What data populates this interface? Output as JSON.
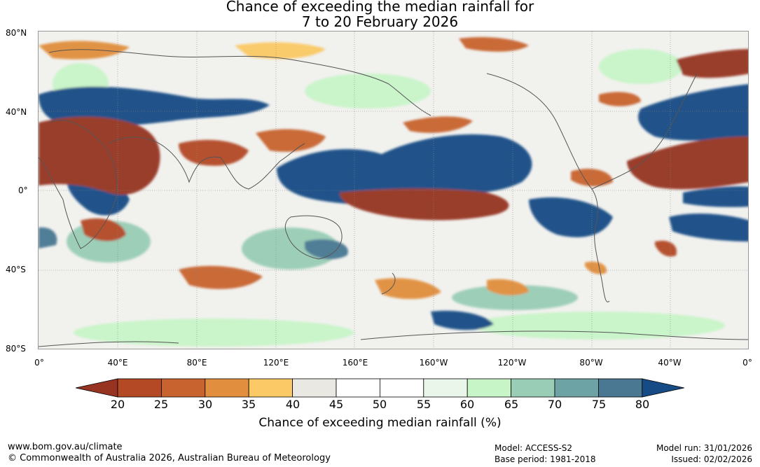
{
  "title_line1": "Chance of exceeding the median rainfall for",
  "title_line2": "7 to 20 February 2026",
  "lat_labels": [
    "80°N",
    "40°N",
    "0°",
    "40°S",
    "80°S"
  ],
  "lon_labels": [
    "0°",
    "40°E",
    "80°E",
    "120°E",
    "160°E",
    "160°W",
    "120°W",
    "80°W",
    "40°W",
    "0°"
  ],
  "colorbar": {
    "ticks": [
      "20",
      "25",
      "30",
      "35",
      "40",
      "45",
      "50",
      "55",
      "60",
      "65",
      "70",
      "75",
      "80"
    ],
    "label": "Chance of exceeding median rainfall (%)",
    "colors": [
      "#963421",
      "#b34a25",
      "#c8632f",
      "#e18f3e",
      "#fbc965",
      "#e9e8e3",
      "#ffffff",
      "#ffffff",
      "#e9f6e9",
      "#c8f5c8",
      "#99cdb5",
      "#6ea3a6",
      "#4a7893",
      "#164b85"
    ]
  },
  "footer": {
    "url": "www.bom.gov.au/climate",
    "copyright": "© Commonwealth of Australia 2026, Australian Bureau of Meteorology",
    "model": "Model: ACCESS-S2",
    "base_period": "Base period: 1981-2018",
    "model_run": "Model run: 31/01/2026",
    "issued": "Issued: 02/02/2026"
  }
}
